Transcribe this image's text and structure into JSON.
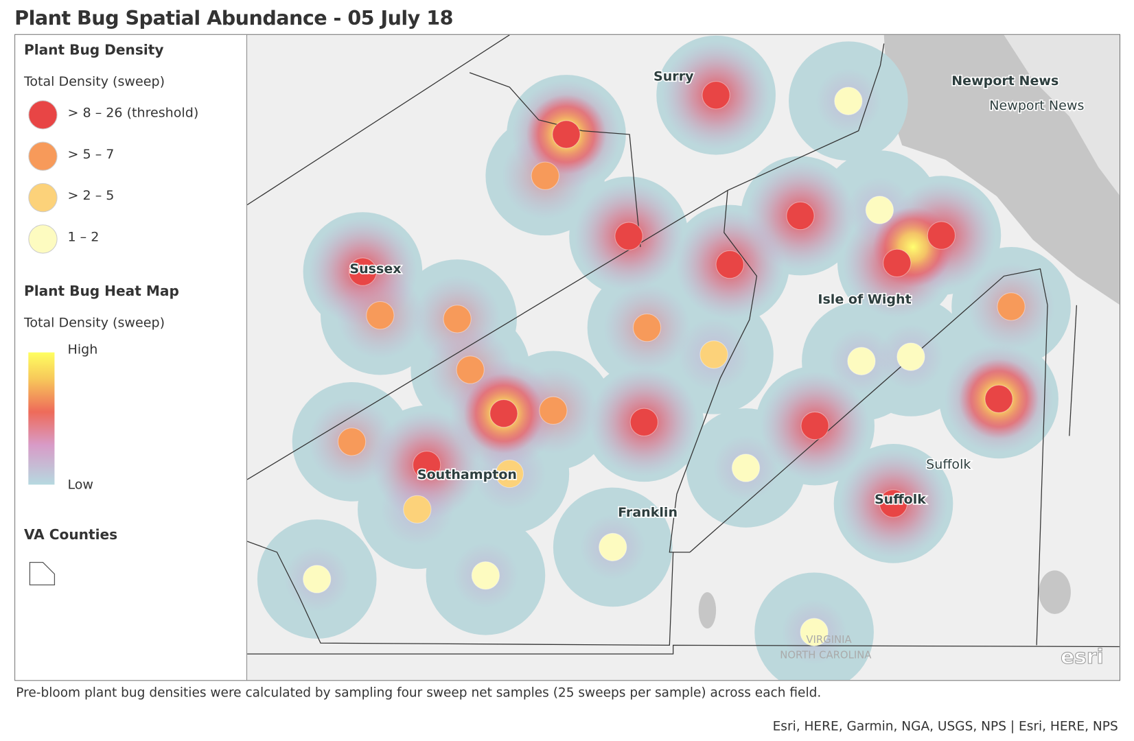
{
  "title": "Plant Bug Spatial Abundance - 05 July 18",
  "legend": {
    "density_title": "Plant Bug Density",
    "density_subtitle": "Total Density (sweep)",
    "classes": [
      {
        "label": "> 8 – 26 (threshold)",
        "color": "#e84545"
      },
      {
        "label": "> 5 – 7",
        "color": "#f79a5a"
      },
      {
        "label": "> 2 – 5",
        "color": "#fcd27a"
      },
      {
        "label": "1 – 2",
        "color": "#fdfbc0"
      }
    ],
    "heat_title": "Plant Bug Heat Map",
    "heat_subtitle": "Total Density (sweep)",
    "heat_high": "High",
    "heat_low": "Low",
    "counties_title": "VA Counties"
  },
  "map": {
    "labels": {
      "surry": "Surry",
      "newport_news_county": "Newport News",
      "newport_news_city": "Newport News",
      "sussex": "Sussex",
      "isle_of_wight": "Isle of Wight",
      "southampton": "Southampton",
      "franklin": "Franklin",
      "suffolk_county": "Suffolk",
      "suffolk_city": "Suffolk",
      "virginia": "VIRGINIA",
      "north_carolina": "NORTH CAROLINA"
    },
    "logo": "esri"
  },
  "caption": "Pre-bloom plant bug densities were calculated by sampling four sweep net samples (25 sweeps per sample) across each field.",
  "attribution": "Esri, HERE, Garmin, NGA, USGS, NPS | Esri, HERE, NPS"
}
